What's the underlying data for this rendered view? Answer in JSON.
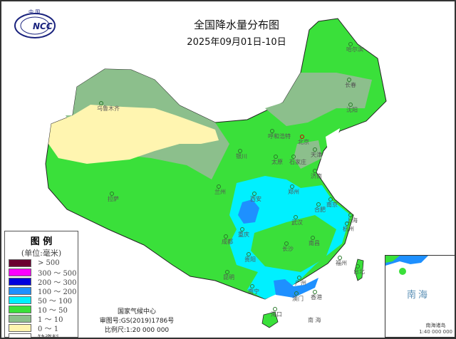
{
  "header": {
    "title": "全国降水量分布图",
    "date_range": "2025年09月01日-10日",
    "logo_text": "中国 NCC"
  },
  "legend": {
    "title": "图 例",
    "unit": "(单位:毫米)",
    "items": [
      {
        "label": "> 500",
        "color": "#6b0030"
      },
      {
        "label": "300 ～ 500",
        "color": "#ff00ff"
      },
      {
        "label": "200 ～ 300",
        "color": "#0000dd"
      },
      {
        "label": "100 ～ 200",
        "color": "#1e90ff"
      },
      {
        "label": "50 ～ 100",
        "color": "#00f0ff"
      },
      {
        "label": "10 ～ 50",
        "color": "#3ae03a"
      },
      {
        "label": "1 ～ 10",
        "color": "#8cbf8c"
      },
      {
        "label": "0 ～ 1",
        "color": "#fff5b0"
      },
      {
        "label": "缺资料",
        "color": "#ffffff"
      }
    ]
  },
  "credit": {
    "org": "国家气候中心",
    "approval": "审图号:GS(2019)1786号",
    "scale": "比例尺:1:20 000 000"
  },
  "inset": {
    "sea_label": "南海",
    "caption": "南海诸岛",
    "scale": "1:40 000 000"
  },
  "cities": [
    "乌鲁木齐",
    "呼和浩特",
    "北京",
    "天津",
    "太原",
    "石家庄",
    "济南",
    "银川",
    "兰州",
    "西安",
    "郑州",
    "合肥",
    "南京",
    "上海",
    "杭州",
    "武汉",
    "成都",
    "重庆",
    "长沙",
    "南昌",
    "福州",
    "台北",
    "贵阳",
    "昆明",
    "南宁",
    "广州",
    "香港",
    "澳门",
    "海口",
    "哈尔滨",
    "长春",
    "沈阳",
    "拉萨"
  ],
  "sea_labels": [
    "南 海"
  ]
}
